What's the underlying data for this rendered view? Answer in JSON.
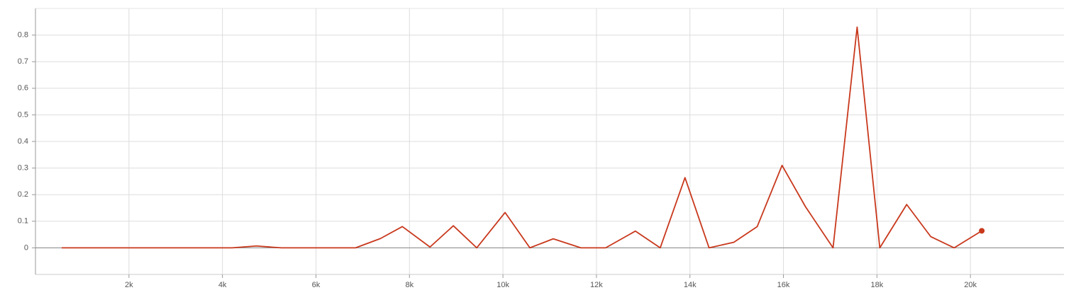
{
  "chart_data": {
    "type": "line",
    "x": [
      561,
      1082,
      1603,
      2124,
      2645,
      3166,
      3686,
      4207,
      4727,
      5258,
      5788,
      6318,
      6848,
      7379,
      7848,
      8439,
      8939,
      9439,
      10045,
      10576,
      11076,
      11667,
      12197,
      12833,
      13364,
      13894,
      14409,
      14939,
      15439,
      15970,
      16470,
      17061,
      17576,
      18061,
      18636,
      19152,
      19652,
      20242
    ],
    "series": [
      {
        "color": "#c8381c",
        "values": [
          0,
          0,
          0,
          0,
          0,
          0,
          0,
          0,
          0.007,
          0,
          0,
          0,
          0,
          0.035,
          0.08,
          0.003,
          0.083,
          0,
          0.133,
          0,
          0.034,
          0,
          0,
          0.063,
          0,
          0.264,
          0,
          0.021,
          0.08,
          0.31,
          0.155,
          0,
          0.83,
          0,
          0.163,
          0.042,
          0,
          0.064
        ]
      }
    ],
    "xlim": [
      0,
      22000
    ],
    "xticks": [
      {
        "value": 2000,
        "label": "2k"
      },
      {
        "value": 4000,
        "label": "4k"
      },
      {
        "value": 6000,
        "label": "6k"
      },
      {
        "value": 8000,
        "label": "8k"
      },
      {
        "value": 10000,
        "label": "10k"
      },
      {
        "value": 12000,
        "label": "12k"
      },
      {
        "value": 14000,
        "label": "14k"
      },
      {
        "value": 16000,
        "label": "16k"
      },
      {
        "value": 18000,
        "label": "18k"
      },
      {
        "value": 20000,
        "label": "20k"
      }
    ],
    "ylim": [
      -0.1,
      0.9
    ],
    "yticks": [
      0,
      0.1,
      0.2,
      0.3,
      0.4,
      0.5,
      0.6,
      0.7,
      0.8
    ],
    "grid": true
  }
}
